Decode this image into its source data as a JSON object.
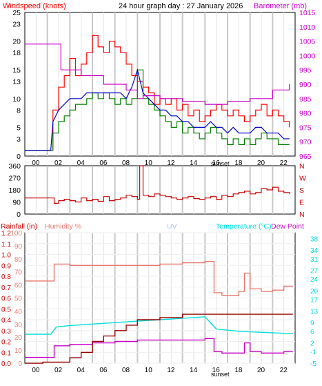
{
  "header": {
    "wind_label": "Windspeed (knots)",
    "graph_title": "24 hour graph day : 27 January 2026",
    "baro_label": "Barometer (mb)"
  },
  "labels": {
    "rain": "Rainfall (in)",
    "humidity": "Humidity %",
    "uv": "UV",
    "temp": "Temperature (°C)",
    "dew": "Dew Point",
    "sunset": "sunset"
  },
  "colors": {
    "wind_gust": "#ff0000",
    "wind_avg": "#008000",
    "wind_dir_line": "#0000cc",
    "baro": "#cc00cc",
    "direction": "#cc0000",
    "rain_text": "#cc0000",
    "humidity": "#e87a6e",
    "uv": "#b0c4ff",
    "temp": "#00dddd",
    "dew": "#cc00cc",
    "rain_line": "#990000",
    "grid_major": "#bbbbbb"
  },
  "chart_data": [
    {
      "type": "line",
      "name": "wind-baro",
      "x_ticks": [
        "00",
        "02",
        "04",
        "06",
        "08",
        "10",
        "12",
        "14",
        "16",
        "18",
        "20",
        "22"
      ],
      "left_axis": {
        "label": "Windspeed (knots)",
        "ylim": [
          0,
          25
        ],
        "ticks": [
          0,
          3,
          5,
          8,
          10,
          13,
          15,
          18,
          20,
          23,
          25
        ]
      },
      "right_axis": {
        "label": "Barometer (mb)",
        "ylim": [
          965,
          1015
        ],
        "ticks": [
          965,
          970,
          975,
          980,
          985,
          990,
          995,
          1000,
          1005,
          1010,
          1015
        ]
      },
      "series": [
        {
          "name": "gust",
          "hours": [
            0,
            2.3,
            2.5,
            3,
            3.5,
            4,
            4.5,
            5,
            5.5,
            6,
            6.5,
            7,
            7.5,
            8,
            8.5,
            9,
            9.5,
            10,
            10.5,
            11,
            11.5,
            12,
            12.5,
            13,
            13.5,
            14,
            14.5,
            15,
            15.5,
            16,
            16.5,
            17,
            17.5,
            18,
            18.5,
            19,
            19.5,
            20,
            20.5,
            21,
            21.5,
            22,
            22.5,
            23,
            23.5
          ],
          "values": [
            1,
            1,
            8,
            12,
            14,
            17,
            14,
            16,
            18,
            21,
            19,
            18,
            20,
            19,
            18,
            16,
            14,
            13,
            12,
            11,
            9,
            10,
            9,
            10,
            8,
            9,
            7,
            8,
            6,
            7,
            8,
            9,
            8,
            7,
            8,
            7,
            6,
            7,
            8,
            9,
            7,
            8,
            7,
            6,
            5
          ]
        },
        {
          "name": "average",
          "hours": [
            0,
            2.3,
            2.5,
            3,
            3.5,
            4,
            4.5,
            5,
            5.5,
            6,
            6.5,
            7,
            7.5,
            8,
            8.5,
            9,
            9.5,
            10,
            10.5,
            11,
            11.5,
            12,
            12.5,
            13,
            13.5,
            14,
            14.5,
            15,
            15.5,
            16,
            16.5,
            17,
            17.5,
            18,
            18.5,
            19,
            19.5,
            20,
            20.5,
            21,
            21.5,
            22,
            22.5,
            23,
            23.5
          ],
          "values": [
            1,
            1,
            4,
            6,
            7,
            8,
            9,
            9,
            10,
            11,
            10,
            11,
            10,
            9,
            10,
            9,
            10,
            15,
            10,
            9,
            8,
            7,
            6,
            5,
            6,
            4,
            5,
            4,
            3,
            4,
            5,
            4,
            3,
            2,
            3,
            2,
            3,
            2,
            3,
            4,
            3,
            3,
            2,
            2,
            2
          ]
        },
        {
          "name": "mean",
          "hours": [
            0,
            2.3,
            2.5,
            3,
            3.5,
            4,
            4.5,
            5,
            5.5,
            6,
            6.5,
            7,
            7.5,
            8,
            8.5,
            9,
            9.5,
            10,
            10.5,
            11,
            11.5,
            12,
            12.5,
            13,
            13.5,
            14,
            14.5,
            15,
            15.5,
            16,
            16.5,
            17,
            17.5,
            18,
            18.5,
            19,
            19.5,
            20,
            20.5,
            21,
            21.5,
            22,
            22.5,
            23,
            23.5
          ],
          "values": [
            1,
            1,
            6,
            8,
            9,
            10,
            10,
            10,
            11,
            11,
            11,
            11,
            11,
            11,
            11,
            10,
            12,
            15,
            11,
            10,
            9,
            8,
            8,
            7,
            7,
            6,
            6,
            5,
            5,
            5,
            6,
            5,
            5,
            4,
            5,
            4,
            4,
            4,
            5,
            5,
            4,
            4,
            4,
            3,
            3
          ]
        },
        {
          "name": "barometer",
          "hours": [
            0,
            3,
            3.2,
            5,
            7,
            9,
            10,
            10.5,
            12,
            14,
            16,
            18,
            20,
            22,
            23.5
          ],
          "values": [
            1004,
            1004,
            995,
            993,
            990,
            988,
            985,
            986,
            985,
            984,
            983,
            984,
            985,
            988,
            990
          ]
        }
      ]
    },
    {
      "type": "scatter",
      "name": "wind-direction",
      "x_ticks": [
        "00",
        "02",
        "04",
        "06",
        "08",
        "10",
        "12",
        "14",
        "16",
        "18",
        "20",
        "22"
      ],
      "ylim": [
        0,
        360
      ],
      "ticks": [
        0,
        90,
        180,
        270,
        360
      ],
      "compass": [
        "N",
        "W",
        "S",
        "E",
        "N"
      ],
      "hours": [
        0,
        2.3,
        2.6,
        3,
        3.5,
        4,
        4.5,
        5,
        5.5,
        6,
        6.5,
        7,
        7.5,
        8,
        8.5,
        9,
        9.5,
        10,
        10.2,
        10.5,
        11,
        11.5,
        12,
        12.5,
        13,
        13.5,
        14,
        14.5,
        15,
        15.5,
        16,
        16.5,
        17,
        17.5,
        18,
        18.5,
        19,
        19.5,
        20,
        20.5,
        21,
        21.5,
        22,
        22.5,
        23,
        23.5
      ],
      "values": [
        120,
        120,
        80,
        100,
        110,
        100,
        90,
        120,
        100,
        110,
        95,
        130,
        100,
        110,
        120,
        140,
        130,
        110,
        360,
        140,
        130,
        150,
        140,
        130,
        120,
        110,
        120,
        130,
        115,
        110,
        120,
        130,
        110,
        140,
        130,
        150,
        160,
        170,
        150,
        160,
        190,
        180,
        200,
        170,
        160,
        150
      ]
    },
    {
      "type": "line",
      "name": "temperature-humidity-rain",
      "x_ticks": [
        "00",
        "02",
        "04",
        "06",
        "08",
        "10",
        "12",
        "14",
        "16",
        "18",
        "20",
        "22"
      ],
      "rain_axis": {
        "ylim": [
          0,
          1.2
        ],
        "ticks": [
          0.0,
          0.1,
          0.2,
          0.3,
          0.4,
          0.5,
          0.6,
          0.7,
          0.8,
          0.9,
          1.0,
          1.1,
          1.2
        ]
      },
      "humidity_axis": {
        "ylim": [
          0,
          100
        ],
        "ticks": [
          0,
          10,
          20,
          30,
          40,
          50,
          60,
          70,
          80,
          90,
          100
        ]
      },
      "temp_axis": {
        "ylim": [
          -5,
          40
        ],
        "ticks": [
          -5,
          -1,
          2,
          6,
          9,
          13,
          17,
          20,
          24,
          27,
          31,
          34,
          38
        ]
      },
      "series": [
        {
          "name": "humidity",
          "hours": [
            0,
            2.3,
            2.6,
            4,
            6,
            8,
            10,
            12,
            14,
            16,
            16.8,
            17.5,
            19,
            19.5,
            20,
            21,
            22,
            23,
            23.8
          ],
          "values": [
            63,
            63,
            76,
            75,
            75,
            75,
            75,
            76,
            77,
            78,
            54,
            52,
            55,
            69,
            57,
            55,
            56,
            59,
            59
          ]
        },
        {
          "name": "temperature",
          "hours": [
            0,
            2.3,
            2.8,
            4,
            6,
            8,
            10,
            12,
            14,
            16,
            17,
            17.5,
            19,
            20,
            22,
            23.8
          ],
          "values": [
            5,
            5,
            7.5,
            8,
            8.5,
            9,
            9.5,
            10,
            10.5,
            11,
            6.8,
            6.6,
            6,
            5.8,
            5.5,
            5.2
          ]
        },
        {
          "name": "dew-point",
          "hours": [
            0,
            2.3,
            2.6,
            4,
            6,
            8,
            10,
            12,
            14,
            16,
            16.8,
            17.5,
            19,
            19.5,
            20,
            21,
            22,
            23,
            23.8
          ],
          "values": [
            -3,
            -3,
            1,
            1.5,
            2,
            2.5,
            3,
            3,
            3,
            3.5,
            -1,
            -1.5,
            -1.5,
            2,
            -1,
            -1.5,
            -1.5,
            -1,
            -1
          ]
        },
        {
          "name": "rainfall",
          "hours": [
            0,
            1.5,
            1.6,
            4,
            5,
            6,
            7,
            8,
            9,
            10,
            12,
            14,
            16,
            18,
            20,
            22,
            23.8
          ],
          "values": [
            0.0,
            0.0,
            0.01,
            0.05,
            0.1,
            0.2,
            0.25,
            0.3,
            0.35,
            0.4,
            0.42,
            0.45,
            0.45,
            0.45,
            0.45,
            0.45,
            0.45
          ]
        }
      ]
    }
  ]
}
